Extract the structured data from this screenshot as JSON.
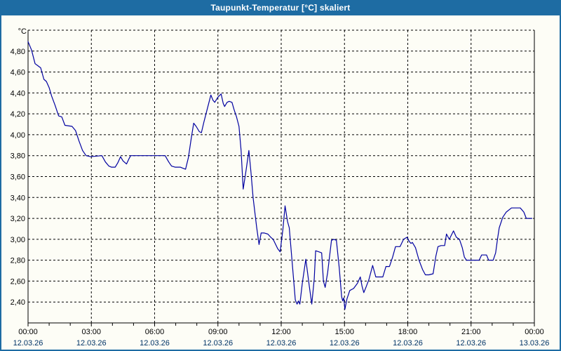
{
  "window": {
    "title": "Taupunkt-Temperatur [°C] skaliert"
  },
  "colors": {
    "titlebar": "#1e6ca3",
    "titlebar_text": "#ffffff",
    "window_border": "#1e6ca3",
    "background": "#fdfdf6",
    "grid": "#000000",
    "axis": "#000000",
    "series_line": "#0000a0",
    "time_label": "#000000",
    "date_label": "#003366",
    "unit_label": "#000000"
  },
  "chart_data": {
    "type": "line",
    "title": "Taupunkt-Temperatur [°C] skaliert",
    "ylabel": "°C",
    "xlabel": "",
    "grid": true,
    "legend": false,
    "y_axis": {
      "min": 2.2,
      "max": 5.0,
      "tick_values": [
        4.8,
        4.6,
        4.4,
        4.2,
        4.0,
        3.8,
        3.6,
        3.4,
        3.2,
        3.0,
        2.8,
        2.6,
        2.4
      ],
      "tick_labels": [
        "4,80",
        "4,60",
        "4,40",
        "4,20",
        "4,00",
        "3,80",
        "3,60",
        "3,40",
        "3,20",
        "3,00",
        "2,80",
        "2,60",
        "2,40"
      ],
      "unit": "°C"
    },
    "x_axis": {
      "hours_total": 24,
      "minor_tick_every_hours": 1,
      "major_ticks": [
        {
          "hour": 0,
          "time": "00:00",
          "date": "12.03.26"
        },
        {
          "hour": 3,
          "time": "03:00",
          "date": "12.03.26"
        },
        {
          "hour": 6,
          "time": "06:00",
          "date": "12.03.26"
        },
        {
          "hour": 9,
          "time": "09:00",
          "date": "12.03.26"
        },
        {
          "hour": 12,
          "time": "12:00",
          "date": "12.03.26"
        },
        {
          "hour": 15,
          "time": "15:00",
          "date": "12.03.26"
        },
        {
          "hour": 18,
          "time": "18:00",
          "date": "12.03.26"
        },
        {
          "hour": 21,
          "time": "21:00",
          "date": "12.03.26"
        },
        {
          "hour": 24,
          "time": "00:00",
          "date": "13.03.26"
        }
      ]
    },
    "series": [
      {
        "name": "Taupunkt-Temperatur [°C]",
        "color": "#0000a0",
        "points_minutes_value": [
          [
            0,
            4.89
          ],
          [
            5,
            4.85
          ],
          [
            10,
            4.81
          ],
          [
            20,
            4.68
          ],
          [
            28,
            4.66
          ],
          [
            36,
            4.64
          ],
          [
            45,
            4.53
          ],
          [
            52,
            4.51
          ],
          [
            60,
            4.45
          ],
          [
            67,
            4.37
          ],
          [
            77,
            4.28
          ],
          [
            87,
            4.18
          ],
          [
            96,
            4.17
          ],
          [
            105,
            4.09
          ],
          [
            125,
            4.08
          ],
          [
            135,
            4.04
          ],
          [
            145,
            3.94
          ],
          [
            155,
            3.85
          ],
          [
            165,
            3.8
          ],
          [
            178,
            3.79
          ],
          [
            210,
            3.8
          ],
          [
            220,
            3.74
          ],
          [
            230,
            3.7
          ],
          [
            237,
            3.69
          ],
          [
            248,
            3.69
          ],
          [
            255,
            3.73
          ],
          [
            263,
            3.79
          ],
          [
            270,
            3.75
          ],
          [
            280,
            3.72
          ],
          [
            287,
            3.77
          ],
          [
            292,
            3.8
          ],
          [
            390,
            3.8
          ],
          [
            395,
            3.77
          ],
          [
            400,
            3.74
          ],
          [
            408,
            3.7
          ],
          [
            418,
            3.69
          ],
          [
            433,
            3.69
          ],
          [
            440,
            3.68
          ],
          [
            448,
            3.67
          ],
          [
            456,
            3.78
          ],
          [
            464,
            3.96
          ],
          [
            471,
            4.11
          ],
          [
            478,
            4.08
          ],
          [
            487,
            4.03
          ],
          [
            493,
            4.02
          ],
          [
            500,
            4.12
          ],
          [
            510,
            4.25
          ],
          [
            520,
            4.38
          ],
          [
            526,
            4.33
          ],
          [
            531,
            4.31
          ],
          [
            540,
            4.36
          ],
          [
            549,
            4.39
          ],
          [
            555,
            4.3
          ],
          [
            559,
            4.27
          ],
          [
            566,
            4.31
          ],
          [
            572,
            4.32
          ],
          [
            580,
            4.31
          ],
          [
            586,
            4.24
          ],
          [
            593,
            4.17
          ],
          [
            600,
            4.08
          ],
          [
            606,
            3.85
          ],
          [
            612,
            3.48
          ],
          [
            620,
            3.66
          ],
          [
            628,
            3.85
          ],
          [
            634,
            3.64
          ],
          [
            640,
            3.4
          ],
          [
            650,
            3.12
          ],
          [
            657,
            2.95
          ],
          [
            663,
            3.06
          ],
          [
            672,
            3.06
          ],
          [
            682,
            3.05
          ],
          [
            690,
            3.02
          ],
          [
            697,
            3.0
          ],
          [
            710,
            2.91
          ],
          [
            717,
            2.88
          ],
          [
            725,
            3.1
          ],
          [
            731,
            3.32
          ],
          [
            738,
            3.17
          ],
          [
            743,
            3.11
          ],
          [
            752,
            2.75
          ],
          [
            760,
            2.42
          ],
          [
            765,
            2.38
          ],
          [
            769,
            2.41
          ],
          [
            773,
            2.38
          ],
          [
            780,
            2.58
          ],
          [
            790,
            2.81
          ],
          [
            800,
            2.55
          ],
          [
            807,
            2.38
          ],
          [
            814,
            2.62
          ],
          [
            818,
            2.89
          ],
          [
            827,
            2.88
          ],
          [
            835,
            2.87
          ],
          [
            840,
            2.6
          ],
          [
            845,
            2.54
          ],
          [
            852,
            2.68
          ],
          [
            863,
            2.99
          ],
          [
            870,
            3.0
          ],
          [
            877,
            2.99
          ],
          [
            885,
            2.73
          ],
          [
            892,
            2.45
          ],
          [
            895,
            2.41
          ],
          [
            898,
            2.44
          ],
          [
            901,
            2.33
          ],
          [
            907,
            2.43
          ],
          [
            915,
            2.51
          ],
          [
            926,
            2.53
          ],
          [
            937,
            2.58
          ],
          [
            945,
            2.64
          ],
          [
            950,
            2.55
          ],
          [
            955,
            2.49
          ],
          [
            961,
            2.54
          ],
          [
            970,
            2.62
          ],
          [
            980,
            2.75
          ],
          [
            989,
            2.64
          ],
          [
            1000,
            2.64
          ],
          [
            1009,
            2.64
          ],
          [
            1018,
            2.74
          ],
          [
            1028,
            2.74
          ],
          [
            1037,
            2.83
          ],
          [
            1045,
            2.93
          ],
          [
            1058,
            2.93
          ],
          [
            1068,
            3.0
          ],
          [
            1078,
            3.02
          ],
          [
            1084,
            2.98
          ],
          [
            1089,
            2.96
          ],
          [
            1093,
            2.97
          ],
          [
            1102,
            2.92
          ],
          [
            1112,
            2.8
          ],
          [
            1122,
            2.71
          ],
          [
            1130,
            2.66
          ],
          [
            1140,
            2.66
          ],
          [
            1152,
            2.67
          ],
          [
            1160,
            2.84
          ],
          [
            1166,
            2.93
          ],
          [
            1175,
            2.94
          ],
          [
            1185,
            2.94
          ],
          [
            1190,
            3.05
          ],
          [
            1198,
            3.0
          ],
          [
            1210,
            3.08
          ],
          [
            1218,
            3.02
          ],
          [
            1227,
            3.0
          ],
          [
            1235,
            2.92
          ],
          [
            1241,
            2.83
          ],
          [
            1247,
            2.8
          ],
          [
            1283,
            2.8
          ],
          [
            1290,
            2.85
          ],
          [
            1304,
            2.85
          ],
          [
            1310,
            2.8
          ],
          [
            1323,
            2.8
          ],
          [
            1330,
            2.87
          ],
          [
            1335,
            3.0
          ],
          [
            1340,
            3.11
          ],
          [
            1350,
            3.21
          ],
          [
            1360,
            3.26
          ],
          [
            1375,
            3.3
          ],
          [
            1400,
            3.3
          ],
          [
            1410,
            3.26
          ],
          [
            1417,
            3.2
          ],
          [
            1433,
            3.2
          ]
        ]
      }
    ]
  }
}
